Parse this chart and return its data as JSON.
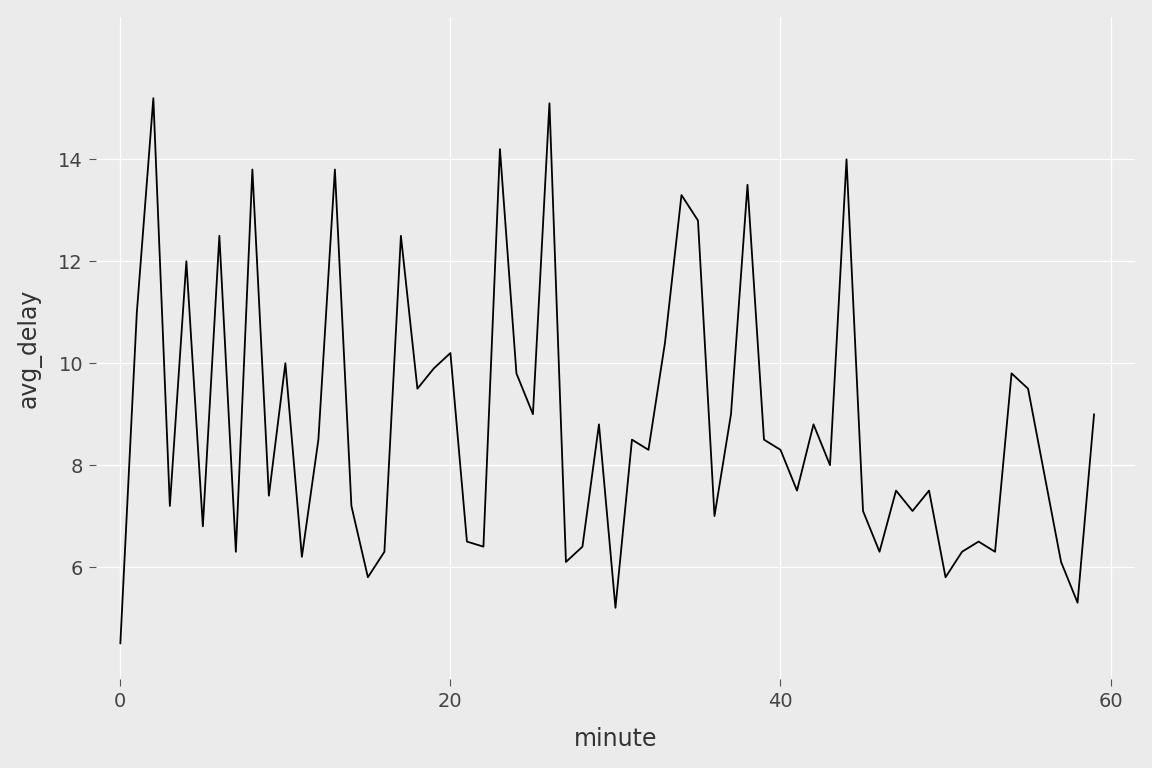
{
  "x": [
    0,
    1,
    2,
    3,
    4,
    5,
    6,
    7,
    8,
    9,
    10,
    11,
    12,
    13,
    14,
    15,
    16,
    17,
    18,
    19,
    20,
    21,
    22,
    23,
    24,
    25,
    26,
    27,
    28,
    29,
    30,
    31,
    32,
    33,
    34,
    35,
    36,
    37,
    38,
    39,
    40,
    41,
    42,
    43,
    44,
    45,
    46,
    47,
    48,
    49,
    50,
    51,
    52,
    53,
    54,
    55,
    56,
    57,
    58,
    59
  ],
  "y": [
    4.5,
    11.0,
    15.2,
    7.2,
    12.0,
    6.8,
    12.5,
    6.3,
    13.8,
    7.4,
    10.0,
    6.2,
    8.5,
    13.8,
    7.2,
    5.8,
    6.3,
    12.5,
    9.5,
    9.9,
    10.2,
    6.5,
    6.4,
    14.2,
    9.8,
    9.0,
    15.1,
    6.1,
    6.4,
    8.8,
    5.2,
    8.5,
    8.3,
    10.4,
    13.3,
    12.8,
    7.0,
    9.0,
    13.5,
    8.5,
    8.3,
    7.5,
    8.8,
    8.0,
    14.0,
    7.1,
    6.3,
    7.5,
    7.1,
    7.5,
    5.8,
    6.3,
    6.5,
    6.3,
    9.8,
    9.5,
    7.8,
    6.1,
    5.3,
    9.0
  ],
  "xlabel": "minute",
  "ylabel": "avg_delay",
  "xlim": [
    -1.5,
    61.5
  ],
  "ylim": [
    3.8,
    16.8
  ],
  "yticks": [
    6,
    8,
    10,
    12,
    14
  ],
  "xticks": [
    0,
    20,
    40,
    60
  ],
  "line_color": "#000000",
  "line_width": 1.3,
  "bg_color": "#EBEBEB",
  "panel_bg": "#EBEBEB",
  "grid_color": "#FFFFFF",
  "tick_label_size": 14,
  "axis_label_size": 17
}
